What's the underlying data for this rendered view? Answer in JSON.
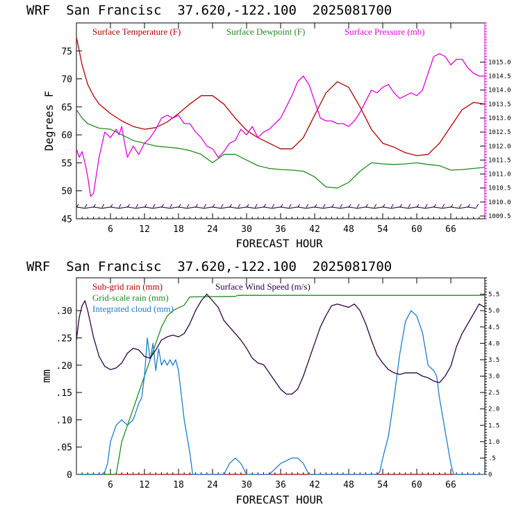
{
  "chart_data": [
    {
      "type": "line",
      "header": "WRF  San Francisc  37.620,-122.100  2025081700",
      "xlabel": "FORECAST HOUR",
      "ylabel": "Degrees F",
      "xlim": [
        0,
        72
      ],
      "ylim": [
        45,
        80
      ],
      "y2lim": [
        1009.4,
        1016.4
      ],
      "x_ticks": [
        6,
        12,
        18,
        24,
        30,
        36,
        42,
        48,
        54,
        60,
        66
      ],
      "y_ticks": [
        45,
        50,
        55,
        60,
        65,
        70,
        75
      ],
      "y2_ticks": [
        1009.5,
        1010.0,
        1010.5,
        1011.0,
        1011.5,
        1012.0,
        1012.5,
        1013.0,
        1013.5,
        1014.0,
        1014.5,
        1015.0
      ],
      "y2_tick_labels": [
        "1009.5",
        "1010.0",
        "1010.5",
        "1011.0",
        "1011.5",
        "1012.0",
        "1012.5",
        "1013.0",
        "1013.5",
        "1014.0",
        "1014.5",
        "1015.0"
      ],
      "series": [
        {
          "name": "Surface Temperature (F)",
          "color": "#b00000",
          "axis": "left",
          "x": [
            0,
            1,
            2,
            3,
            4,
            6,
            8,
            10,
            12,
            14,
            16,
            18,
            20,
            22,
            24,
            26,
            28,
            30,
            32,
            34,
            36,
            38,
            40,
            42,
            44,
            46,
            48,
            50,
            52,
            54,
            56,
            58,
            60,
            62,
            64,
            66,
            68,
            70,
            72
          ],
          "values": [
            77.5,
            72.5,
            69,
            67,
            65.5,
            63.8,
            62.5,
            61.5,
            61,
            61.3,
            62.3,
            63.8,
            65.5,
            67,
            67,
            65.5,
            63,
            60.8,
            59.5,
            58.5,
            57.5,
            57.5,
            59.5,
            63.5,
            67.5,
            69.5,
            68.5,
            65,
            61,
            58.5,
            57.8,
            56.8,
            56.3,
            56.5,
            58.5,
            61.5,
            64.5,
            65.8,
            65.5
          ]
        },
        {
          "name": "Surface Dewpoint (F)",
          "color": "#1f8a1f",
          "axis": "left",
          "x": [
            0,
            1,
            2,
            4,
            6,
            8,
            10,
            12,
            14,
            16,
            18,
            20,
            22,
            24,
            26,
            28,
            30,
            32,
            34,
            36,
            38,
            40,
            42,
            44,
            46,
            48,
            50,
            52,
            54,
            56,
            58,
            60,
            62,
            64,
            66,
            68,
            70,
            72
          ],
          "values": [
            64.5,
            63,
            62,
            61.2,
            61,
            60,
            59,
            58.5,
            58,
            57.8,
            57.6,
            57.2,
            56.5,
            55,
            56.5,
            56.5,
            55.5,
            54.5,
            54,
            53.8,
            53.7,
            53.5,
            52.5,
            50.7,
            50.5,
            51.5,
            53.5,
            55,
            54.8,
            54.7,
            54.8,
            55,
            54.7,
            54.5,
            53.7,
            53.8,
            54,
            54.2
          ]
        },
        {
          "name": "Surface Pressure (mb)",
          "color": "#e000e0",
          "axis": "right",
          "x": [
            0,
            0.5,
            1,
            1.5,
            2,
            2.5,
            3,
            4,
            5,
            6,
            7,
            7.5,
            8,
            8.5,
            9,
            10,
            11,
            12,
            13,
            14,
            15,
            16,
            17,
            18,
            19,
            20,
            21,
            22,
            23,
            24,
            25,
            26,
            27,
            28,
            29,
            30,
            31,
            32,
            33,
            34,
            35,
            36,
            37,
            38,
            39,
            40,
            41,
            42,
            43,
            44,
            45,
            46,
            47,
            48,
            49,
            50,
            51,
            52,
            53,
            54,
            55,
            56,
            57,
            58,
            59,
            60,
            61,
            62,
            63,
            64,
            65,
            66,
            67,
            68,
            69,
            70,
            71,
            72
          ],
          "values": [
            1011.9,
            1011.6,
            1011.8,
            1011.4,
            1010.9,
            1010.2,
            1010.3,
            1011.6,
            1012.5,
            1012.3,
            1012.6,
            1012.4,
            1012.7,
            1012.1,
            1011.6,
            1012.0,
            1011.7,
            1012.1,
            1012.3,
            1012.6,
            1013.0,
            1013.1,
            1013.0,
            1013.1,
            1012.8,
            1012.8,
            1012.5,
            1012.3,
            1012.0,
            1011.9,
            1011.6,
            1011.8,
            1012.1,
            1012.2,
            1012.6,
            1012.4,
            1012.7,
            1012.3,
            1012.5,
            1012.6,
            1012.8,
            1013.0,
            1013.4,
            1013.8,
            1014.3,
            1014.5,
            1014.2,
            1013.6,
            1013.0,
            1012.9,
            1012.9,
            1012.8,
            1012.8,
            1012.7,
            1012.9,
            1013.2,
            1013.6,
            1014.0,
            1013.9,
            1014.1,
            1014.2,
            1013.9,
            1013.7,
            1013.8,
            1013.9,
            1013.8,
            1014.0,
            1014.6,
            1015.2,
            1015.3,
            1015.2,
            1014.9,
            1015.1,
            1015.1,
            1014.8,
            1014.6,
            1014.5,
            1014.5
          ]
        }
      ],
      "wind_barbs": {
        "color": "#2a0040",
        "y_level": 47.0,
        "x_start": 0,
        "x_end": 71,
        "x_step": 1.5
      }
    },
    {
      "type": "line",
      "header": "WRF  San Francisc  37.620,-122.100  2025081700",
      "xlabel": "FORECAST HOUR",
      "ylabel": "mm",
      "xlim": [
        0,
        72
      ],
      "ylim": [
        0,
        0.36
      ],
      "y2lim": [
        0,
        6
      ],
      "x_ticks": [
        6,
        12,
        18,
        24,
        30,
        36,
        42,
        48,
        54,
        60,
        66
      ],
      "y_ticks": [
        0,
        0.05,
        0.1,
        0.15,
        0.2,
        0.25,
        0.3
      ],
      "y_tick_labels": [
        "0",
        ".05",
        ".10",
        ".15",
        ".20",
        ".25",
        ".30"
      ],
      "y2_ticks": [
        0,
        0.5,
        1.0,
        1.5,
        2.0,
        2.5,
        3.0,
        3.5,
        4.0,
        4.5,
        5.0,
        5.5
      ],
      "y2_tick_labels": [
        "0",
        ".5",
        "1.0",
        "1.5",
        "2.0",
        "2.5",
        "3.0",
        "3.5",
        "4.0",
        "4.5",
        "5.0",
        "5.5"
      ],
      "series": [
        {
          "name": "Sub-grid rain (mm)",
          "color": "#b00000",
          "axis": "left",
          "x": [
            0,
            72
          ],
          "values": [
            0,
            0
          ]
        },
        {
          "name": "Grid-scale rain (mm)",
          "color": "#1f8a1f",
          "axis": "left",
          "x": [
            0,
            7,
            7.5,
            8,
            9,
            10,
            11,
            12,
            13,
            14,
            15,
            16,
            17,
            18,
            19,
            20,
            28,
            28.5,
            72
          ],
          "values": [
            0,
            0,
            0.03,
            0.06,
            0.09,
            0.12,
            0.15,
            0.18,
            0.21,
            0.24,
            0.27,
            0.29,
            0.3,
            0.305,
            0.31,
            0.325,
            0.326,
            0.328,
            0.328
          ]
        },
        {
          "name": "Integrated cloud (mm)",
          "color": "#1a7cd0",
          "axis": "left",
          "x": [
            0,
            4.5,
            5,
            5.5,
            6,
            7,
            8,
            9,
            10,
            11,
            11.5,
            12,
            12.5,
            13,
            13.5,
            14,
            14.5,
            15,
            15.5,
            16,
            16.5,
            17,
            17.5,
            18,
            19,
            20,
            20.5,
            26,
            27,
            28,
            29,
            30,
            34,
            36,
            38,
            39,
            40,
            41,
            53,
            53.5,
            54,
            55,
            56,
            57,
            58,
            59,
            60,
            61,
            62,
            63,
            63.5,
            64,
            65,
            66,
            66.5,
            72
          ],
          "values": [
            0,
            0,
            0.005,
            0.02,
            0.06,
            0.09,
            0.1,
            0.09,
            0.1,
            0.13,
            0.14,
            0.18,
            0.25,
            0.21,
            0.24,
            0.19,
            0.23,
            0.2,
            0.21,
            0.2,
            0.21,
            0.2,
            0.21,
            0.19,
            0.1,
            0.04,
            0,
            0,
            0.02,
            0.03,
            0.02,
            0,
            0,
            0.02,
            0.03,
            0.03,
            0.02,
            0,
            0,
            0.005,
            0.03,
            0.07,
            0.14,
            0.22,
            0.28,
            0.3,
            0.29,
            0.26,
            0.2,
            0.19,
            0.18,
            0.14,
            0.08,
            0.02,
            0,
            0
          ]
        },
        {
          "name": "Surface Wind Speed (m/s)",
          "color": "#2a0040",
          "axis": "right",
          "x": [
            0,
            0.5,
            1,
            1.5,
            2,
            3,
            4,
            5,
            6,
            7,
            8,
            9,
            10,
            11,
            12,
            13,
            14,
            15,
            16,
            17,
            18,
            19,
            20,
            21,
            22,
            23,
            24,
            25,
            26,
            27,
            28,
            29,
            30,
            31,
            32,
            33,
            34,
            35,
            36,
            37,
            38,
            39,
            40,
            41,
            42,
            43,
            44,
            45,
            46,
            47,
            48,
            49,
            50,
            51,
            52,
            53,
            54,
            55,
            56,
            57,
            58,
            59,
            60,
            61,
            62,
            63,
            64,
            65,
            66,
            67,
            68,
            69,
            70,
            71,
            72
          ],
          "values": [
            4.1,
            4.8,
            5.15,
            5.3,
            5.0,
            4.2,
            3.6,
            3.3,
            3.2,
            3.25,
            3.4,
            3.7,
            3.85,
            3.8,
            3.6,
            3.55,
            3.8,
            4.1,
            4.2,
            4.25,
            4.2,
            4.3,
            4.6,
            5.0,
            5.3,
            5.5,
            5.3,
            5.1,
            4.7,
            4.5,
            4.3,
            4.1,
            3.85,
            3.55,
            3.4,
            3.35,
            3.1,
            2.85,
            2.6,
            2.45,
            2.45,
            2.6,
            3.0,
            3.5,
            4.0,
            4.5,
            4.85,
            5.15,
            5.2,
            5.15,
            5.1,
            5.2,
            5.0,
            4.6,
            4.1,
            3.65,
            3.4,
            3.2,
            3.1,
            3.05,
            3.1,
            3.1,
            3.1,
            3.0,
            2.95,
            2.85,
            2.8,
            3.0,
            3.3,
            3.9,
            4.3,
            4.6,
            4.9,
            5.2,
            5.1
          ]
        }
      ]
    }
  ]
}
